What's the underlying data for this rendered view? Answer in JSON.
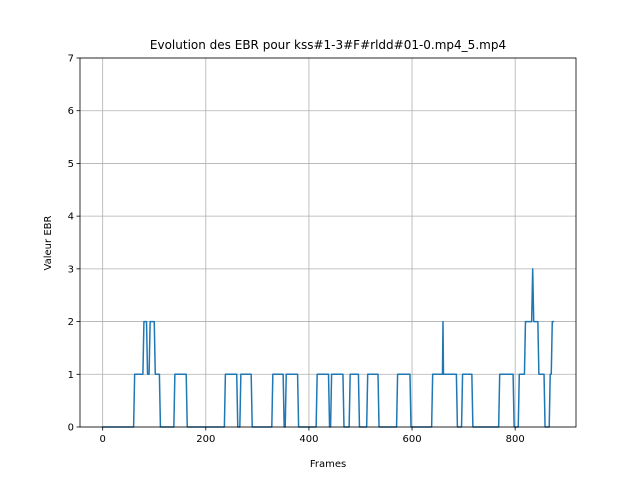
{
  "chart_data": {
    "type": "line",
    "title": "Evolution des EBR pour kss#1-3#F#rldd#01-0.mp4_5.mp4",
    "xlabel": "Frames",
    "ylabel": "Valeur EBR",
    "xlim": [
      -44,
      918
    ],
    "ylim": [
      0,
      7
    ],
    "xticks": [
      0,
      200,
      400,
      600,
      800
    ],
    "yticks": [
      0,
      1,
      2,
      3,
      4,
      5,
      6,
      7
    ],
    "grid": true,
    "series": [
      {
        "color": "#1f77b4",
        "x": [
          0,
          60,
          62,
          78,
          80,
          85,
          87,
          90,
          92,
          100,
          102,
          110,
          112,
          138,
          140,
          162,
          164,
          236,
          238,
          260,
          262,
          266,
          268,
          288,
          290,
          328,
          330,
          350,
          352,
          354,
          356,
          378,
          380,
          414,
          416,
          438,
          440,
          442,
          444,
          466,
          468,
          478,
          480,
          496,
          498,
          512,
          514,
          534,
          536,
          570,
          572,
          596,
          598,
          638,
          640,
          658,
          659,
          660,
          661,
          662,
          663,
          664,
          666,
          686,
          688,
          696,
          698,
          716,
          718,
          768,
          770,
          796,
          798,
          806,
          808,
          818,
          820,
          830,
          832,
          834,
          836,
          838,
          844,
          846,
          856,
          858,
          866,
          868,
          870,
          872,
          874
        ],
        "y": [
          0,
          0,
          1,
          1,
          2,
          2,
          1,
          1,
          2,
          2,
          1,
          1,
          0,
          0,
          1,
          1,
          0,
          0,
          1,
          1,
          0,
          0,
          1,
          1,
          0,
          0,
          1,
          1,
          0,
          0,
          1,
          1,
          0,
          0,
          1,
          1,
          0,
          0,
          1,
          1,
          0,
          0,
          1,
          1,
          0,
          0,
          1,
          1,
          0,
          0,
          1,
          1,
          0,
          0,
          1,
          1,
          1,
          2,
          1,
          1,
          1,
          1,
          1,
          1,
          0,
          0,
          1,
          1,
          0,
          0,
          1,
          1,
          0,
          0,
          1,
          1,
          2,
          2,
          2,
          3,
          2,
          2,
          2,
          1,
          1,
          0,
          0,
          1,
          1,
          2,
          2
        ]
      }
    ]
  }
}
